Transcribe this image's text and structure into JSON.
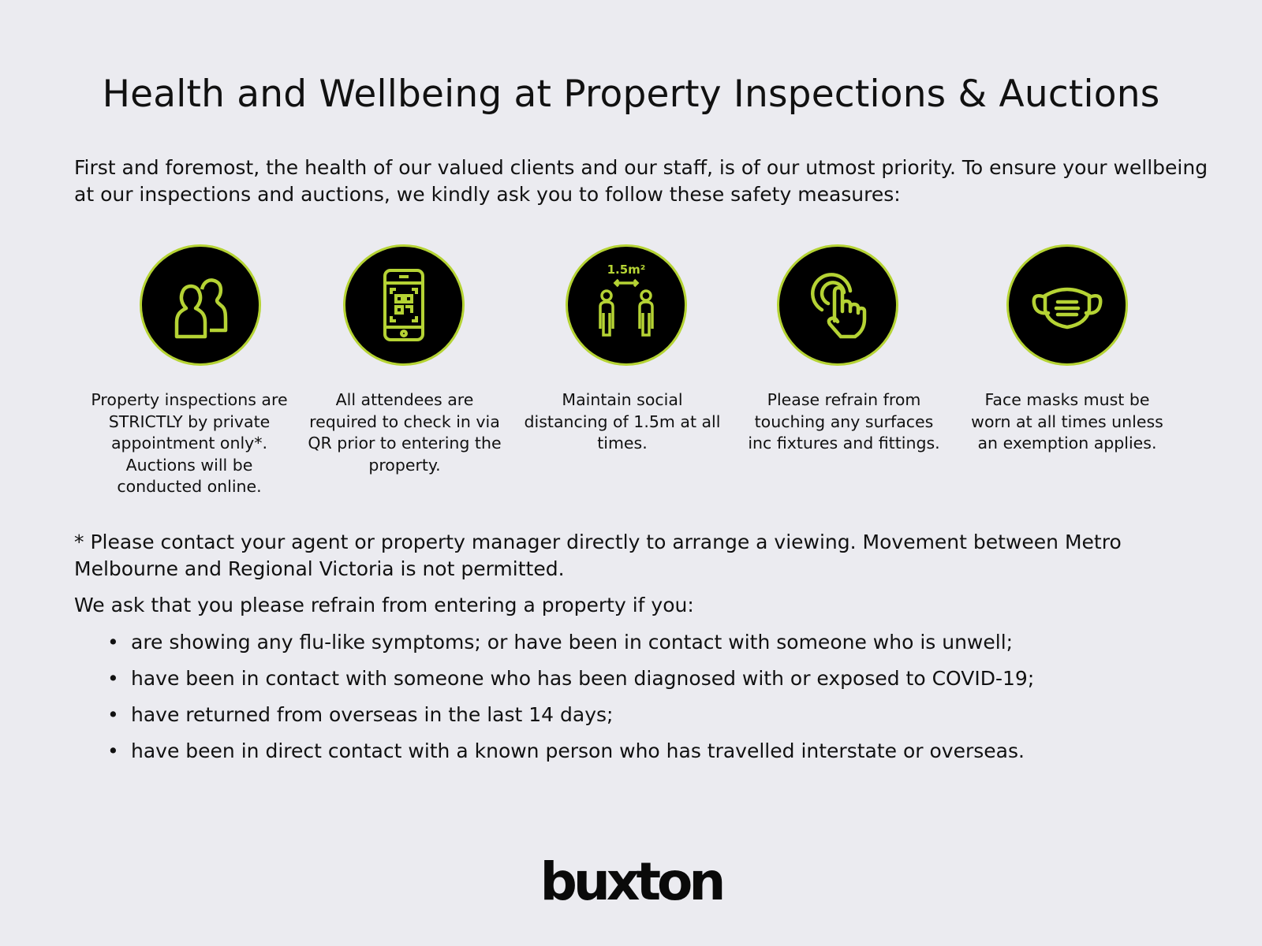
{
  "title": "Health and Wellbeing at Property Inspections & Auctions",
  "intro": "First and foremost, the health of our valued clients and our staff, is of our utmost priority. To ensure your wellbeing at our inspections and auctions, we kindly ask you to follow these safety measures:",
  "colors": {
    "accent": "#b5d334",
    "icon_bg": "#000000",
    "background": "#ebebf0"
  },
  "measures": [
    {
      "icon": "people-icon",
      "caption": "Property inspections are STRICTLY by private appointment only*. Auctions will be conducted online."
    },
    {
      "icon": "phone-qr-icon",
      "caption": "All attendees are required to check in via QR prior to entering the property."
    },
    {
      "icon": "social-distance-icon",
      "icon_label": "1.5m²",
      "caption": "Maintain social distancing of 1.5m at all times."
    },
    {
      "icon": "touch-hand-icon",
      "caption": "Please refrain from touching any surfaces inc fixtures and fittings."
    },
    {
      "icon": "face-mask-icon",
      "caption": "Face masks must be worn at all times unless an exemption applies."
    }
  ],
  "footnote": "* Please contact your agent or property manager directly to arrange a viewing. Movement between Metro Melbourne and Regional Victoria is not permitted.",
  "ask": "We ask that you please refrain from entering a property if you:",
  "bullets": [
    "are showing any flu-like symptoms; or have been in contact with someone who is unwell;",
    "have been in contact with someone who has been diagnosed with or exposed to COVID-19;",
    "have returned from overseas in the last 14 days;",
    "have been in direct contact with a known person who has travelled interstate or overseas."
  ],
  "logo": "buxton"
}
